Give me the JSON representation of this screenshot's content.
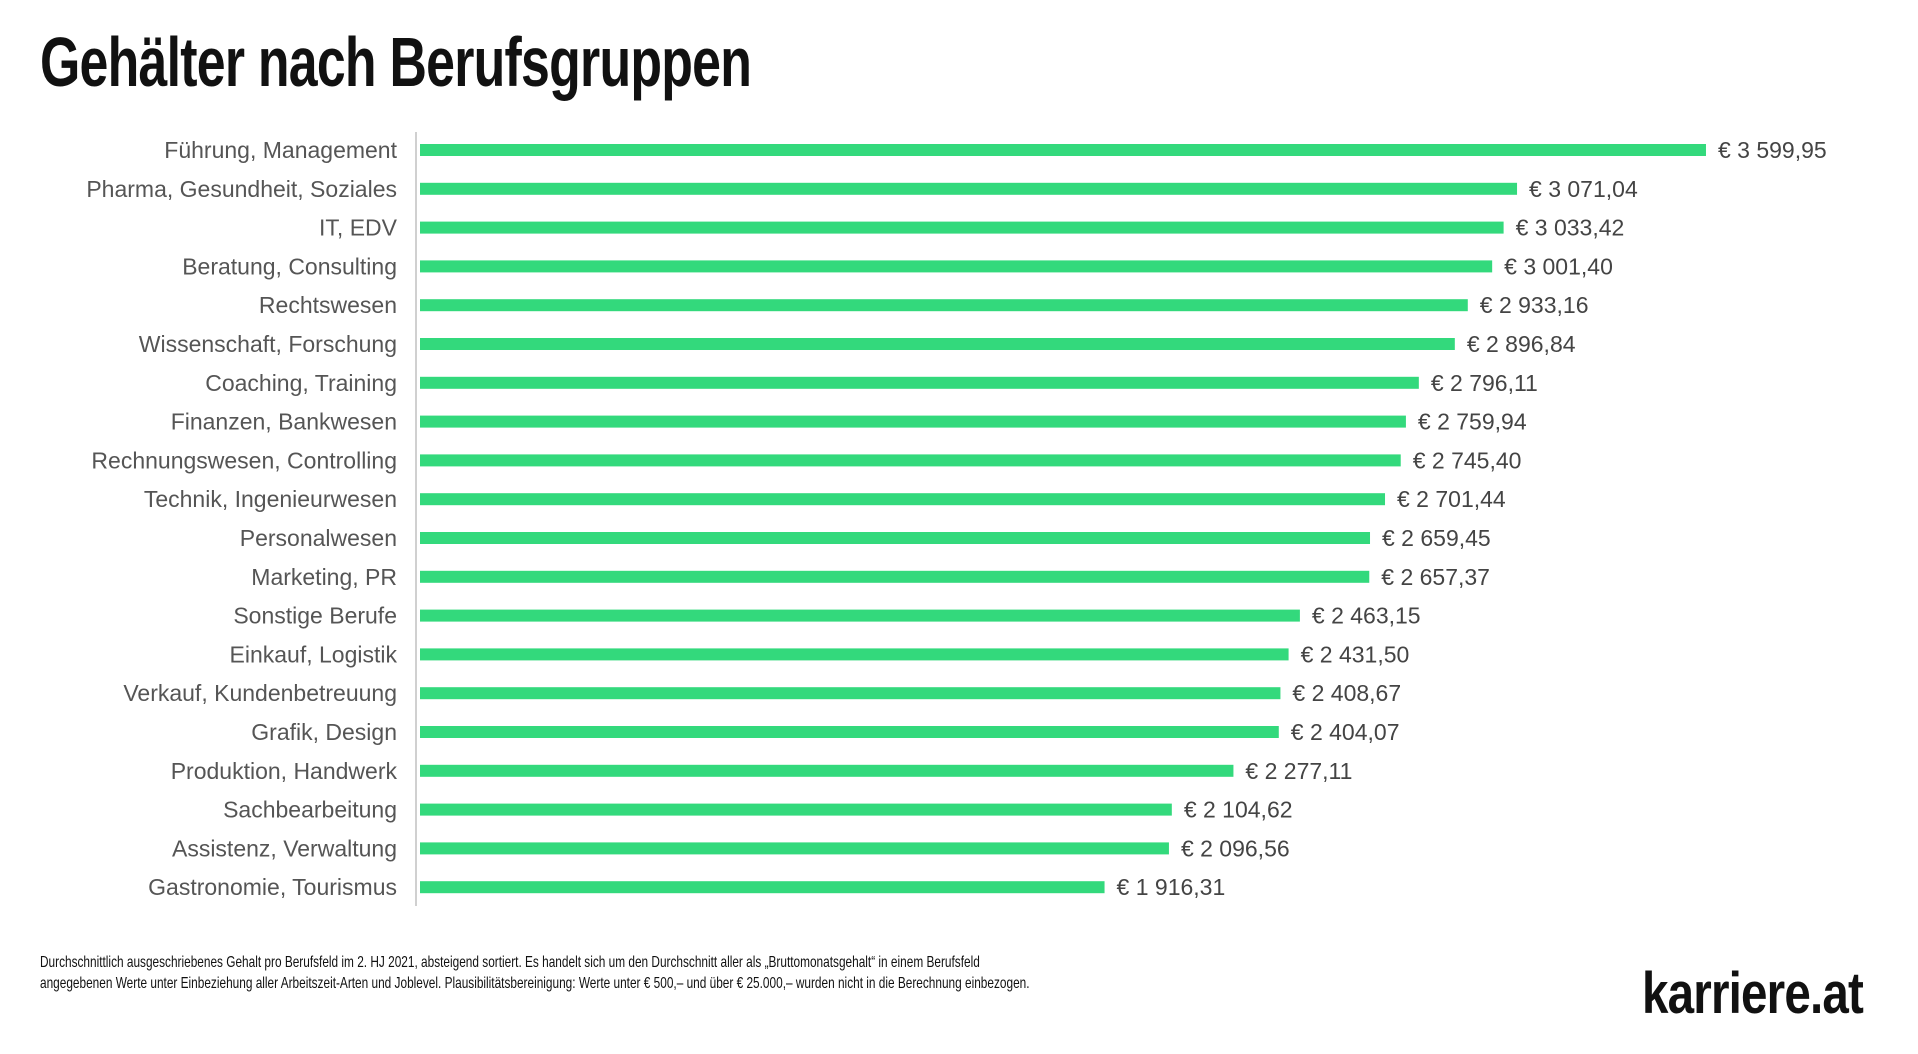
{
  "title": "Gehälter nach Berufsgruppen",
  "chart_data": {
    "type": "bar",
    "orientation": "horizontal",
    "title": "Gehälter nach Berufsgruppen",
    "xlabel": "",
    "ylabel": "",
    "grid": false,
    "bar_color": "#33d97c",
    "categories": [
      "Führung, Management",
      "Pharma, Gesundheit, Soziales",
      "IT, EDV",
      "Beratung, Consulting",
      "Rechtswesen",
      "Wissenschaft, Forschung",
      "Coaching, Training",
      "Finanzen, Bankwesen",
      "Rechnungswesen, Controlling",
      "Technik, Ingenieurwesen",
      "Personalwesen",
      "Marketing, PR",
      "Sonstige Berufe",
      "Einkauf, Logistik",
      "Verkauf, Kundenbetreuung",
      "Grafik, Design",
      "Produktion, Handwerk",
      "Sachbearbeitung",
      "Assistenz, Verwaltung",
      "Gastronomie, Tourismus"
    ],
    "values": [
      3599.95,
      3071.04,
      3033.42,
      3001.4,
      2933.16,
      2896.84,
      2796.11,
      2759.94,
      2745.4,
      2701.44,
      2659.45,
      2657.37,
      2463.15,
      2431.5,
      2408.67,
      2404.07,
      2277.11,
      2104.62,
      2096.56,
      1916.31
    ],
    "value_labels": [
      "€ 3 599,95",
      "€ 3 071,04",
      "€ 3 033,42",
      "€ 3 001,40",
      "€ 2 933,16",
      "€ 2 896,84",
      "€ 2 796,11",
      "€ 2 759,94",
      "€ 2 745,40",
      "€ 2 701,44",
      "€ 2 659,45",
      "€ 2 657,37",
      "€ 2 463,15",
      "€ 2 431,50",
      "€ 2 408,67",
      "€ 2 404,07",
      "€ 2 277,11",
      "€ 2 104,62",
      "€ 2 096,56",
      "€ 1 916,31"
    ],
    "xlim": [
      0,
      3600
    ]
  },
  "footnote": {
    "line1": "Durchschnittlich ausgeschriebenes Gehalt pro Berufsfeld im 2. HJ 2021, absteigend sortiert. Es handelt sich um den Durchschnitt aller als „Bruttomonatsgehalt“ in einem Berufsfeld",
    "line2": "angegebenen Werte unter Einbeziehung aller Arbeitszeit-Arten und Joblevel. Plausibilitätsbereinigung: Werte unter € 500,– und über € 25.000,– wurden nicht in die Berechnung einbezogen."
  },
  "logo": "karriere.at"
}
